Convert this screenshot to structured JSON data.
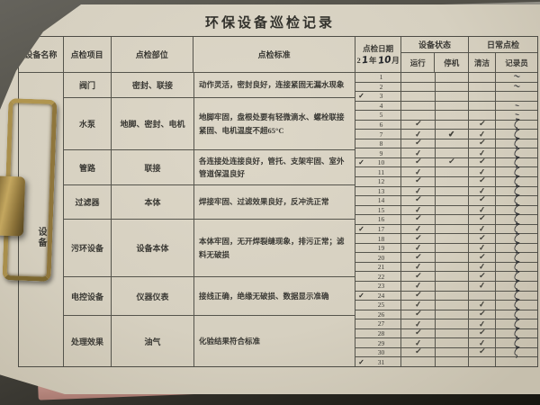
{
  "title": "环保设备巡检记录",
  "table": {
    "headers": {
      "equipment_name": "设备名称",
      "inspection_item": "点检项目",
      "inspection_part": "点检部位",
      "inspection_standard": "点检标准",
      "inspection_date": "点检日期",
      "date_prefix": "2",
      "date_year_handwritten": "1",
      "date_year_unit": "年",
      "date_month_handwritten": "10",
      "date_month_unit": "月",
      "equipment_status": "设备状态",
      "running": "运行",
      "shutdown": "停机",
      "daily_inspection": "日常点检",
      "cleaning": "清洁",
      "recorder": "记录员"
    },
    "equipment_label": "设备",
    "rows": [
      {
        "item": "阀门",
        "part": "密封、联接",
        "standard": "动作灵活，密封良好，连接紧固无漏水现象"
      },
      {
        "item": "水泵",
        "part": "地脚、密封、电机",
        "standard": "地脚牢固，盘根处要有轻微滴水、螺栓联接紧固、电机温度不超65°C"
      },
      {
        "item": "管路",
        "part": "联接",
        "standard": "各连接处连接良好，管托、支架牢固、室外管道保温良好"
      },
      {
        "item": "过滤器",
        "part": "本体",
        "standard": "焊接牢固、过滤效果良好，反冲洗正常"
      },
      {
        "item": "污环设备",
        "part": "设备本体",
        "standard": "本体牢固，无开焊裂缝现象，排污正常；滤料无破损"
      },
      {
        "item": "电控设备",
        "part": "仪器仪表",
        "standard": "接线正确，绝缘无破损、数据显示准确"
      },
      {
        "item": "处理效果",
        "part": "油气",
        "standard": "化验结果符合标准"
      }
    ],
    "days": [
      {
        "d": "1",
        "w": "",
        "run": "",
        "stop": "",
        "clean": "",
        "rec": "~"
      },
      {
        "d": "2",
        "w": "",
        "run": "",
        "stop": "",
        "clean": "",
        "rec": "~"
      },
      {
        "d": "3",
        "w": "✓",
        "run": "",
        "stop": "",
        "clean": "",
        "rec": ""
      },
      {
        "d": "4",
        "w": "",
        "run": "",
        "stop": "",
        "clean": "",
        "rec": "–"
      },
      {
        "d": "5",
        "w": "",
        "run": "",
        "stop": "",
        "clean": "",
        "rec": "–"
      },
      {
        "d": "6",
        "w": "",
        "run": "✓",
        "stop": "",
        "clean": "✓",
        "rec": "ζ"
      },
      {
        "d": "7",
        "w": "",
        "run": "✓",
        "stop": "✔",
        "clean": "✓",
        "rec": "ζ"
      },
      {
        "d": "8",
        "w": "",
        "run": "✓",
        "stop": "",
        "clean": "✓",
        "rec": "ζ"
      },
      {
        "d": "9",
        "w": "",
        "run": "✓",
        "stop": "",
        "clean": "✓",
        "rec": "ζ"
      },
      {
        "d": "10",
        "w": "✓",
        "run": "✓",
        "stop": "✓",
        "clean": "✓",
        "rec": "ζ"
      },
      {
        "d": "11",
        "w": "",
        "run": "✓",
        "stop": "",
        "clean": "✓",
        "rec": "ζ"
      },
      {
        "d": "12",
        "w": "",
        "run": "✓",
        "stop": "",
        "clean": "✓",
        "rec": "ζ"
      },
      {
        "d": "13",
        "w": "",
        "run": "✓",
        "stop": "",
        "clean": "✓",
        "rec": "ζ"
      },
      {
        "d": "14",
        "w": "",
        "run": "✓",
        "stop": "",
        "clean": "✓",
        "rec": "ζ"
      },
      {
        "d": "15",
        "w": "",
        "run": "✓",
        "stop": "",
        "clean": "✓",
        "rec": "ζ"
      },
      {
        "d": "16",
        "w": "",
        "run": "✓",
        "stop": "",
        "clean": "✓",
        "rec": "ζ"
      },
      {
        "d": "17",
        "w": "✓",
        "run": "✓",
        "stop": "",
        "clean": "✓",
        "rec": "ζ"
      },
      {
        "d": "18",
        "w": "",
        "run": "✓",
        "stop": "",
        "clean": "✓",
        "rec": "ζ"
      },
      {
        "d": "19",
        "w": "",
        "run": "✓",
        "stop": "",
        "clean": "✓",
        "rec": "ζ"
      },
      {
        "d": "20",
        "w": "",
        "run": "✓",
        "stop": "",
        "clean": "✓",
        "rec": "ζ"
      },
      {
        "d": "21",
        "w": "",
        "run": "✓",
        "stop": "",
        "clean": "✓",
        "rec": "ζ"
      },
      {
        "d": "22",
        "w": "",
        "run": "✓",
        "stop": "",
        "clean": "✓",
        "rec": "ζ"
      },
      {
        "d": "23",
        "w": "",
        "run": "✓",
        "stop": "",
        "clean": "✓",
        "rec": "ζ"
      },
      {
        "d": "24",
        "w": "✓",
        "run": "✓",
        "stop": "",
        "clean": "",
        "rec": "ζ"
      },
      {
        "d": "25",
        "w": "",
        "run": "✓",
        "stop": "",
        "clean": "✓",
        "rec": "ζ"
      },
      {
        "d": "26",
        "w": "",
        "run": "✓",
        "stop": "",
        "clean": "✓",
        "rec": "ζ"
      },
      {
        "d": "27",
        "w": "",
        "run": "✓",
        "stop": "",
        "clean": "✓",
        "rec": "ζ"
      },
      {
        "d": "28",
        "w": "",
        "run": "✓",
        "stop": "",
        "clean": "✓",
        "rec": "ζ"
      },
      {
        "d": "29",
        "w": "",
        "run": "✓",
        "stop": "",
        "clean": "✓",
        "rec": "ζ"
      },
      {
        "d": "30",
        "w": "",
        "run": "✓",
        "stop": "",
        "clean": "✓",
        "rec": "ζ"
      },
      {
        "d": "31",
        "w": "✓",
        "run": "",
        "stop": "",
        "clean": "",
        "rec": ""
      }
    ]
  }
}
